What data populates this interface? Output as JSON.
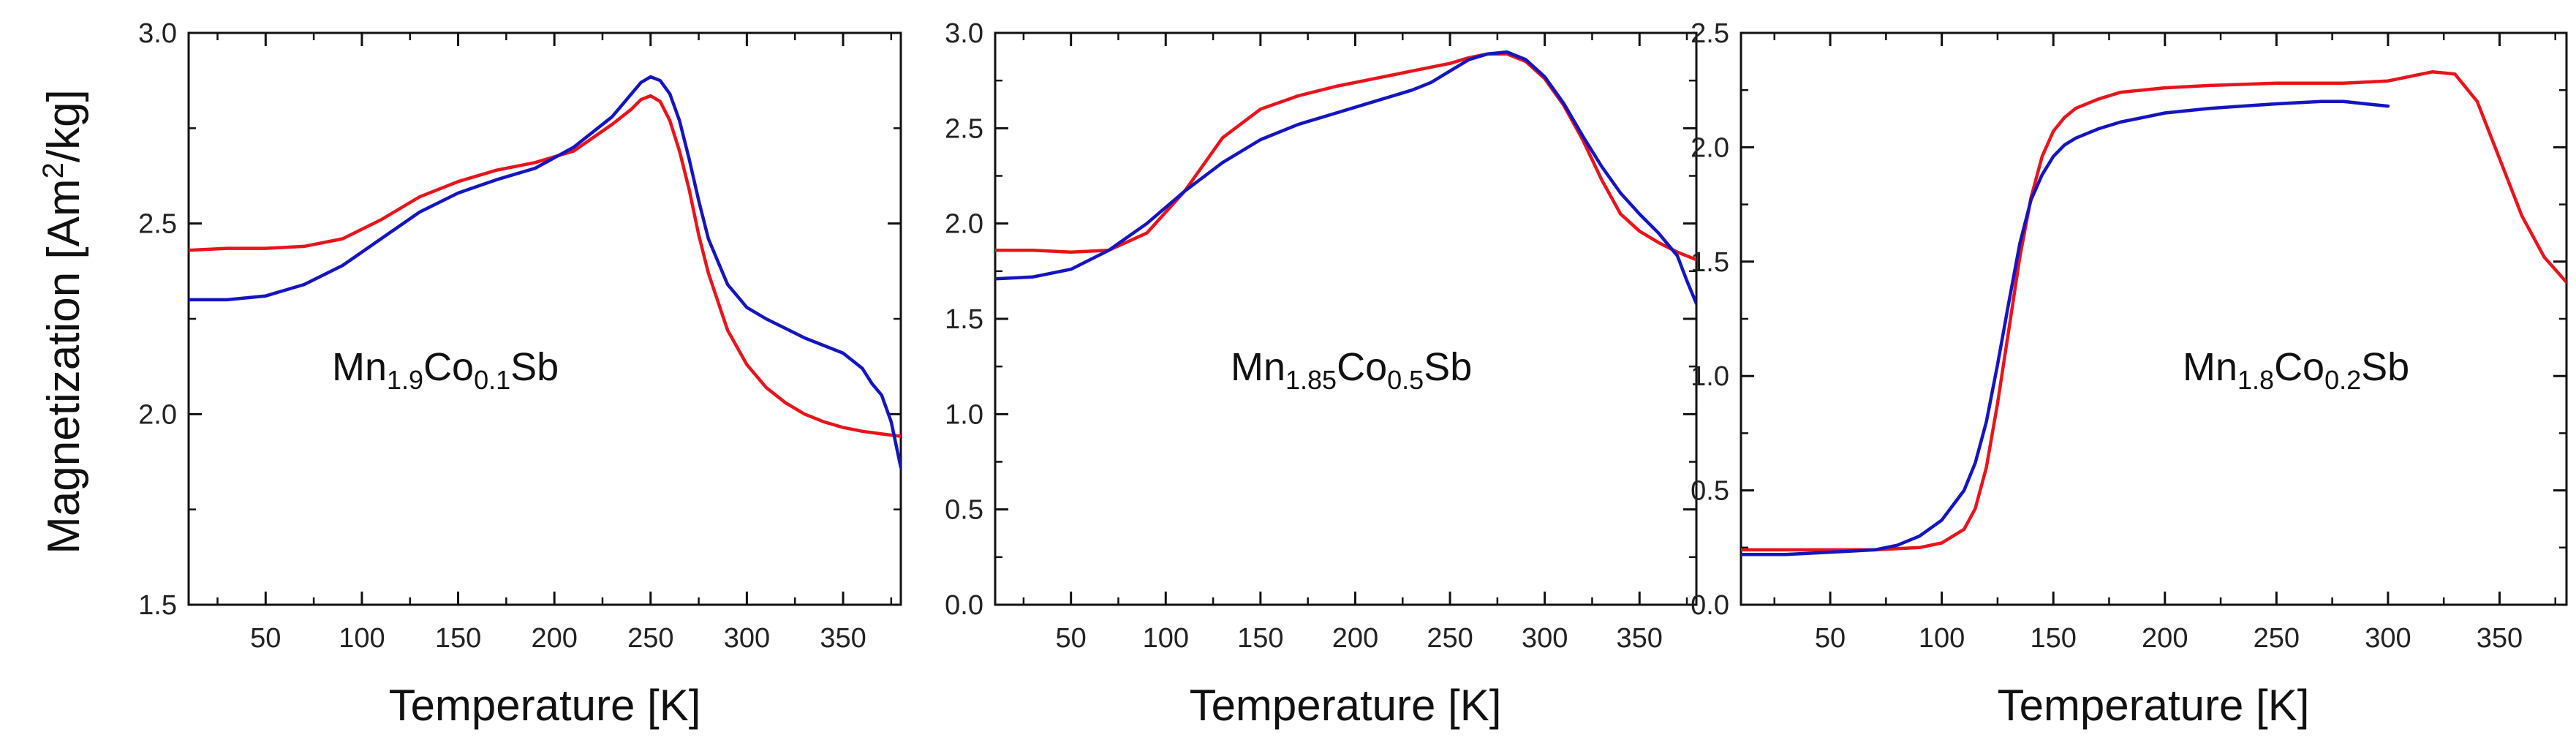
{
  "figure": {
    "ylabel_main": "Magnetization [Am",
    "ylabel_sup": "2",
    "ylabel_tail": "/kg]"
  },
  "chart_data": [
    {
      "type": "line",
      "title": "",
      "xlabel": "Temperature [K]",
      "ylabel": "Magnetization [Am2/kg]",
      "xlim": [
        10,
        380
      ],
      "ylim": [
        1.5,
        3.0
      ],
      "xticks": [
        50,
        100,
        150,
        200,
        250,
        300,
        350
      ],
      "xtick_labels": [
        "50",
        "100",
        "150",
        "200",
        "250",
        "300",
        "350"
      ],
      "yticks": [
        1.5,
        2.0,
        2.5,
        3.0
      ],
      "ytick_labels": [
        "1.5",
        "2.0",
        "2.5",
        "3.0"
      ],
      "annotation": {
        "base": "Mn",
        "sub1": "1.9",
        "mid": "Co",
        "sub2": "0.1",
        "tail": "Sb"
      },
      "series": [
        {
          "name": "red",
          "color": "#e8141c",
          "x": [
            10,
            30,
            50,
            70,
            90,
            110,
            130,
            150,
            170,
            190,
            210,
            230,
            240,
            245,
            250,
            255,
            260,
            265,
            270,
            275,
            280,
            290,
            300,
            310,
            320,
            330,
            340,
            350,
            360,
            370,
            380
          ],
          "y": [
            2.43,
            2.435,
            2.435,
            2.44,
            2.46,
            2.51,
            2.57,
            2.61,
            2.64,
            2.66,
            2.69,
            2.76,
            2.8,
            2.825,
            2.835,
            2.82,
            2.77,
            2.69,
            2.59,
            2.47,
            2.37,
            2.22,
            2.13,
            2.07,
            2.03,
            2.0,
            1.98,
            1.965,
            1.955,
            1.948,
            1.942
          ]
        },
        {
          "name": "blue",
          "color": "#1515c0",
          "x": [
            10,
            30,
            50,
            70,
            90,
            110,
            130,
            150,
            170,
            190,
            210,
            230,
            240,
            245,
            250,
            255,
            260,
            265,
            270,
            275,
            280,
            290,
            300,
            310,
            320,
            330,
            340,
            350,
            360,
            365,
            370,
            375,
            380
          ],
          "y": [
            2.3,
            2.3,
            2.31,
            2.34,
            2.39,
            2.46,
            2.53,
            2.58,
            2.615,
            2.645,
            2.7,
            2.78,
            2.84,
            2.87,
            2.885,
            2.875,
            2.84,
            2.77,
            2.67,
            2.56,
            2.46,
            2.34,
            2.28,
            2.25,
            2.225,
            2.2,
            2.18,
            2.16,
            2.12,
            2.08,
            2.05,
            1.98,
            1.86
          ]
        }
      ]
    },
    {
      "type": "line",
      "title": "",
      "xlabel": "Temperature [K]",
      "ylabel": "",
      "xlim": [
        10,
        380
      ],
      "ylim": [
        0.0,
        3.0
      ],
      "xticks": [
        50,
        100,
        150,
        200,
        250,
        300,
        350
      ],
      "xtick_labels": [
        "50",
        "100",
        "150",
        "200",
        "250",
        "300",
        "350"
      ],
      "yticks": [
        0.0,
        0.5,
        1.0,
        1.5,
        2.0,
        2.5,
        3.0
      ],
      "ytick_labels": [
        "0.0",
        "0.5",
        "1.0",
        "1.5",
        "2.0",
        "2.5",
        "3.0"
      ],
      "annotation": {
        "base": "Mn",
        "sub1": "1.85",
        "mid": "Co",
        "sub2": "0.5",
        "tail": "Sb"
      },
      "series": [
        {
          "name": "red",
          "color": "#e8141c",
          "x": [
            10,
            30,
            50,
            70,
            90,
            110,
            130,
            150,
            170,
            190,
            210,
            230,
            250,
            260,
            270,
            280,
            290,
            300,
            310,
            320,
            330,
            340,
            350,
            360,
            370,
            380
          ],
          "y": [
            1.86,
            1.86,
            1.85,
            1.86,
            1.95,
            2.17,
            2.45,
            2.6,
            2.67,
            2.72,
            2.76,
            2.8,
            2.84,
            2.87,
            2.89,
            2.89,
            2.85,
            2.76,
            2.62,
            2.44,
            2.23,
            2.05,
            1.96,
            1.9,
            1.85,
            1.81
          ]
        },
        {
          "name": "blue",
          "color": "#1515c0",
          "x": [
            10,
            30,
            50,
            70,
            90,
            110,
            130,
            150,
            170,
            190,
            210,
            230,
            240,
            250,
            260,
            270,
            280,
            290,
            300,
            310,
            320,
            330,
            340,
            350,
            360,
            370,
            375,
            380
          ],
          "y": [
            1.71,
            1.72,
            1.76,
            1.86,
            2.0,
            2.17,
            2.32,
            2.44,
            2.52,
            2.58,
            2.64,
            2.7,
            2.74,
            2.8,
            2.86,
            2.89,
            2.9,
            2.86,
            2.77,
            2.63,
            2.46,
            2.3,
            2.16,
            2.05,
            1.95,
            1.83,
            1.7,
            1.58
          ]
        }
      ]
    },
    {
      "type": "line",
      "title": "",
      "xlabel": "Temperature [K]",
      "ylabel": "",
      "xlim": [
        10,
        380
      ],
      "ylim": [
        0.0,
        2.5
      ],
      "xticks": [
        50,
        100,
        150,
        200,
        250,
        300,
        350
      ],
      "xtick_labels": [
        "50",
        "100",
        "150",
        "200",
        "250",
        "300",
        "350"
      ],
      "yticks": [
        0.0,
        0.5,
        1.0,
        1.5,
        2.0,
        2.5
      ],
      "ytick_labels": [
        "0.0",
        "0.5",
        "1.0",
        "1.5",
        "2.0",
        "2.5"
      ],
      "annotation": {
        "base": "Mn",
        "sub1": "1.8",
        "mid": "Co",
        "sub2": "0.2",
        "tail": "Sb"
      },
      "series": [
        {
          "name": "red",
          "color": "#e8141c",
          "x": [
            10,
            30,
            50,
            70,
            90,
            100,
            110,
            115,
            120,
            125,
            130,
            135,
            140,
            145,
            150,
            155,
            160,
            170,
            180,
            200,
            220,
            250,
            280,
            300,
            310,
            320,
            330,
            340,
            350,
            360,
            370,
            380
          ],
          "y": [
            0.24,
            0.24,
            0.24,
            0.24,
            0.25,
            0.27,
            0.33,
            0.42,
            0.6,
            0.88,
            1.2,
            1.52,
            1.78,
            1.96,
            2.07,
            2.13,
            2.17,
            2.21,
            2.24,
            2.26,
            2.27,
            2.28,
            2.28,
            2.29,
            2.31,
            2.33,
            2.32,
            2.2,
            1.95,
            1.7,
            1.52,
            1.41
          ]
        },
        {
          "name": "blue",
          "color": "#1515c0",
          "x": [
            10,
            30,
            50,
            70,
            80,
            90,
            100,
            110,
            115,
            120,
            125,
            130,
            135,
            140,
            145,
            150,
            155,
            160,
            170,
            180,
            200,
            220,
            250,
            270,
            280,
            290,
            300
          ],
          "y": [
            0.22,
            0.22,
            0.23,
            0.24,
            0.26,
            0.3,
            0.37,
            0.5,
            0.62,
            0.8,
            1.05,
            1.32,
            1.58,
            1.77,
            1.88,
            1.96,
            2.01,
            2.04,
            2.08,
            2.11,
            2.15,
            2.17,
            2.19,
            2.2,
            2.2,
            2.19,
            2.18
          ]
        }
      ]
    }
  ]
}
